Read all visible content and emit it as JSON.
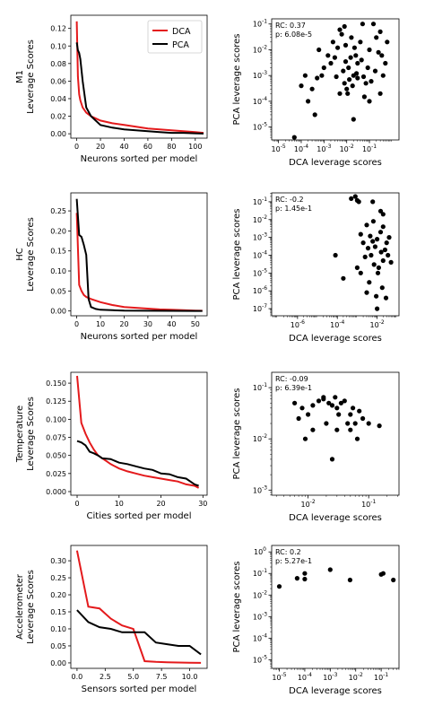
{
  "legend": [
    {
      "name": "DCA",
      "color": "#e41a1c"
    },
    {
      "name": "PCA",
      "color": "#000000"
    }
  ],
  "chart_data": [
    {
      "type": "line",
      "dataset": "M1",
      "ylabel": "Leverage Scores",
      "xlabel": "Neurons sorted per model",
      "xlim": [
        -5,
        110
      ],
      "ylim": [
        -0.005,
        0.135
      ],
      "xticks": [
        0,
        20,
        40,
        60,
        80,
        100
      ],
      "yticks": [
        0.0,
        0.02,
        0.04,
        0.06,
        0.08,
        0.1,
        0.12
      ],
      "ytick_labels": [
        "0.00",
        "0.02",
        "0.04",
        "0.06",
        "0.08",
        "0.10",
        "0.12"
      ],
      "legend_position": "top-right",
      "series": [
        {
          "name": "DCA",
          "color": "#e41a1c",
          "x": [
            0,
            1,
            2,
            3,
            5,
            8,
            12,
            20,
            30,
            40,
            50,
            60,
            70,
            80,
            90,
            100,
            107
          ],
          "y": [
            0.128,
            0.065,
            0.045,
            0.038,
            0.03,
            0.024,
            0.02,
            0.015,
            0.012,
            0.01,
            0.008,
            0.006,
            0.005,
            0.004,
            0.003,
            0.002,
            0.001
          ]
        },
        {
          "name": "PCA",
          "color": "#000000",
          "x": [
            0,
            1,
            2,
            3,
            5,
            8,
            12,
            20,
            30,
            40,
            50,
            60,
            70,
            80,
            90,
            100,
            107
          ],
          "y": [
            0.104,
            0.095,
            0.092,
            0.085,
            0.06,
            0.03,
            0.02,
            0.01,
            0.007,
            0.005,
            0.004,
            0.003,
            0.002,
            0.001,
            0.001,
            0.0005,
            0.0002
          ]
        }
      ]
    },
    {
      "type": "scatter",
      "dataset": "M1",
      "xlabel": "DCA leverage scores",
      "ylabel": "PCA leverage scores",
      "xscale": "log",
      "yscale": "log",
      "xlim_exp": [
        -5.3,
        0.3
      ],
      "ylim_exp": [
        -5.5,
        -0.8
      ],
      "xticks_exp": [
        -5,
        -4,
        -3,
        -2,
        -1
      ],
      "yticks_exp": [
        -5,
        -4,
        -3,
        -2,
        -1
      ],
      "annotation": [
        "RC: 0.37",
        "p: 6.08e-5"
      ],
      "points": [
        [
          0.01,
          0.0003
        ],
        [
          0.02,
          0.001
        ],
        [
          0.008,
          0.0005
        ],
        [
          0.005,
          0.0002
        ],
        [
          0.03,
          0.0008
        ],
        [
          0.015,
          0.005
        ],
        [
          0.012,
          0.002
        ],
        [
          0.04,
          0.02
        ],
        [
          0.1,
          0.01
        ],
        [
          0.2,
          0.03
        ],
        [
          0.3,
          0.05
        ],
        [
          0.15,
          0.1
        ],
        [
          0.05,
          0.1
        ],
        [
          0.008,
          0.08
        ],
        [
          0.005,
          0.06
        ],
        [
          0.003,
          0.005
        ],
        [
          0.002,
          0.003
        ],
        [
          0.001,
          0.002
        ],
        [
          0.0008,
          0.001
        ],
        [
          0.0005,
          0.0008
        ],
        [
          0.0003,
          0.0003
        ],
        [
          0.0002,
          0.0001
        ],
        [
          0.0001,
          0.0004
        ],
        [
          0.0004,
          3e-05
        ],
        [
          0.02,
          2e-05
        ],
        [
          0.1,
          0.0001
        ],
        [
          0.06,
          0.00015
        ],
        [
          0.3,
          0.0002
        ],
        [
          0.5,
          0.003
        ],
        [
          0.4,
          0.001
        ],
        [
          0.25,
          0.008
        ],
        [
          0.07,
          0.0005
        ],
        [
          0.009,
          0.015
        ],
        [
          0.006,
          0.04
        ],
        [
          0.004,
          0.012
        ],
        [
          0.0025,
          0.02
        ],
        [
          0.0015,
          0.006
        ],
        [
          0.03,
          0.003
        ],
        [
          0.025,
          0.006
        ],
        [
          0.018,
          0.0004
        ],
        [
          0.011,
          0.0002
        ],
        [
          0.007,
          0.0015
        ],
        [
          0.045,
          0.004
        ],
        [
          0.085,
          0.002
        ],
        [
          0.12,
          0.0006
        ],
        [
          0.18,
          0.0015
        ],
        [
          0.6,
          0.02
        ],
        [
          0.35,
          0.006
        ],
        [
          0.0006,
          0.01
        ],
        [
          0.00015,
          0.001
        ],
        [
          5e-05,
          4e-06
        ],
        [
          0.016,
          0.03
        ],
        [
          0.022,
          0.012
        ],
        [
          0.009,
          0.0035
        ],
        [
          0.0035,
          0.0009
        ],
        [
          0.013,
          0.0007
        ],
        [
          0.027,
          0.0012
        ],
        [
          0.055,
          0.0009
        ]
      ]
    },
    {
      "type": "line",
      "dataset": "HC",
      "ylabel": "Leverage Scores",
      "xlabel": "Neurons sorted per model",
      "xlim": [
        -2.5,
        55
      ],
      "ylim": [
        -0.012,
        0.295
      ],
      "xticks": [
        0,
        10,
        20,
        30,
        40,
        50
      ],
      "yticks": [
        0.0,
        0.05,
        0.1,
        0.15,
        0.2,
        0.25
      ],
      "ytick_labels": [
        "0.00",
        "0.05",
        "0.10",
        "0.15",
        "0.20",
        "0.25"
      ],
      "series": [
        {
          "name": "DCA",
          "color": "#e41a1c",
          "x": [
            0,
            1,
            2,
            3,
            4,
            6,
            10,
            15,
            20,
            25,
            30,
            35,
            40,
            45,
            50,
            53
          ],
          "y": [
            0.245,
            0.065,
            0.05,
            0.04,
            0.035,
            0.03,
            0.022,
            0.015,
            0.01,
            0.008,
            0.006,
            0.004,
            0.003,
            0.002,
            0.001,
            0.0005
          ]
        },
        {
          "name": "PCA",
          "color": "#000000",
          "x": [
            0,
            1,
            2,
            3,
            4,
            5,
            6,
            8,
            10,
            15,
            20,
            30,
            40,
            50,
            53
          ],
          "y": [
            0.28,
            0.19,
            0.185,
            0.165,
            0.14,
            0.03,
            0.01,
            0.005,
            0.003,
            0.002,
            0.001,
            0.0005,
            0.0003,
            0.0002,
            0.0001
          ]
        }
      ]
    },
    {
      "type": "scatter",
      "dataset": "HC",
      "xlabel": "DCA leverage scores",
      "ylabel": "PCA leverage scores",
      "xscale": "log",
      "yscale": "log",
      "xlim_exp": [
        -7.3,
        -0.9
      ],
      "ylim_exp": [
        -7.4,
        -0.5
      ],
      "xticks_exp": [
        -6,
        -4,
        -2
      ],
      "yticks_exp": [
        -7,
        -6,
        -5,
        -4,
        -3,
        -2,
        -1
      ],
      "annotation": [
        "RC: -0.2",
        "p: 1.45e-1"
      ],
      "points": [
        [
          0.0005,
          0.15
        ],
        [
          0.0008,
          0.2
        ],
        [
          0.001,
          0.12
        ],
        [
          0.0012,
          0.1
        ],
        [
          0.006,
          0.1
        ],
        [
          0.015,
          0.03
        ],
        [
          0.003,
          0.005
        ],
        [
          0.01,
          0.0008
        ],
        [
          0.02,
          0.004
        ],
        [
          0.008,
          0.0003
        ],
        [
          0.005,
          0.0001
        ],
        [
          0.02,
          5e-05
        ],
        [
          0.012,
          2e-05
        ],
        [
          0.0015,
          1e-05
        ],
        [
          0.0002,
          5e-06
        ],
        [
          8e-05,
          0.0001
        ],
        [
          0.03,
          0.0005
        ],
        [
          0.04,
          0.001
        ],
        [
          0.025,
          0.0002
        ],
        [
          0.007,
          3e-05
        ],
        [
          0.004,
          3e-06
        ],
        [
          0.009,
          5e-07
        ],
        [
          0.018,
          1.5e-06
        ],
        [
          0.01,
          1e-07
        ],
        [
          0.003,
          8e-07
        ],
        [
          0.002,
          0.0005
        ],
        [
          0.015,
          0.002
        ],
        [
          0.035,
          0.0001
        ],
        [
          0.0015,
          0.0015
        ],
        [
          0.0025,
          8e-05
        ],
        [
          0.006,
          0.0006
        ],
        [
          0.05,
          4e-05
        ],
        [
          0.011,
          1e-05
        ],
        [
          0.0035,
          0.00025
        ],
        [
          0.0045,
          0.0012
        ],
        [
          0.016,
          0.00015
        ],
        [
          0.028,
          4e-07
        ],
        [
          0.001,
          2e-05
        ],
        [
          0.02,
          0.02
        ],
        [
          0.0065,
          0.008
        ]
      ]
    },
    {
      "type": "line",
      "dataset": "Temperature",
      "ylabel": "Leverage Scores",
      "xlabel": "Cities sorted per model",
      "xlim": [
        -1.5,
        31
      ],
      "ylim": [
        -0.005,
        0.165
      ],
      "xticks": [
        0,
        10,
        20,
        30
      ],
      "yticks": [
        0.0,
        0.025,
        0.05,
        0.075,
        0.1,
        0.125,
        0.15
      ],
      "ytick_labels": [
        "0.000",
        "0.025",
        "0.050",
        "0.075",
        "0.100",
        "0.125",
        "0.150"
      ],
      "series": [
        {
          "name": "DCA",
          "color": "#e41a1c",
          "x": [
            0,
            1,
            2,
            3,
            4,
            5,
            6,
            7,
            8,
            9,
            10,
            12,
            14,
            16,
            18,
            20,
            22,
            24,
            26,
            28,
            29
          ],
          "y": [
            0.16,
            0.095,
            0.08,
            0.068,
            0.058,
            0.05,
            0.046,
            0.042,
            0.038,
            0.035,
            0.032,
            0.028,
            0.025,
            0.022,
            0.02,
            0.018,
            0.016,
            0.014,
            0.01,
            0.008,
            0.005
          ]
        },
        {
          "name": "PCA",
          "color": "#000000",
          "x": [
            0,
            1,
            2,
            3,
            4,
            5,
            6,
            8,
            10,
            12,
            14,
            16,
            18,
            20,
            22,
            24,
            26,
            28,
            29
          ],
          "y": [
            0.07,
            0.068,
            0.064,
            0.055,
            0.053,
            0.05,
            0.046,
            0.045,
            0.04,
            0.038,
            0.035,
            0.032,
            0.03,
            0.025,
            0.024,
            0.02,
            0.018,
            0.01,
            0.008
          ]
        }
      ]
    },
    {
      "type": "scatter",
      "dataset": "Temperature",
      "xlabel": "DCA leverage scores",
      "ylabel": "PCA leverage scores",
      "xscale": "log",
      "yscale": "log",
      "xlim_exp": [
        -2.6,
        -0.5
      ],
      "ylim_exp": [
        -3.1,
        -0.7
      ],
      "xticks_exp": [
        -2,
        -1
      ],
      "yticks_exp": [
        -3,
        -2,
        -1
      ],
      "annotation": [
        "RC: -0.09",
        "p: 6.39e-1"
      ],
      "points": [
        [
          0.006,
          0.05
        ],
        [
          0.008,
          0.04
        ],
        [
          0.01,
          0.03
        ],
        [
          0.012,
          0.045
        ],
        [
          0.015,
          0.055
        ],
        [
          0.018,
          0.06
        ],
        [
          0.022,
          0.05
        ],
        [
          0.025,
          0.045
        ],
        [
          0.03,
          0.04
        ],
        [
          0.035,
          0.05
        ],
        [
          0.04,
          0.055
        ],
        [
          0.05,
          0.03
        ],
        [
          0.06,
          0.02
        ],
        [
          0.07,
          0.035
        ],
        [
          0.08,
          0.025
        ],
        [
          0.1,
          0.02
        ],
        [
          0.15,
          0.018
        ],
        [
          0.009,
          0.01
        ],
        [
          0.02,
          0.02
        ],
        [
          0.03,
          0.015
        ],
        [
          0.025,
          0.004
        ],
        [
          0.045,
          0.02
        ],
        [
          0.055,
          0.04
        ],
        [
          0.007,
          0.025
        ],
        [
          0.012,
          0.015
        ],
        [
          0.018,
          0.065
        ],
        [
          0.032,
          0.03
        ],
        [
          0.065,
          0.01
        ],
        [
          0.05,
          0.015
        ],
        [
          0.028,
          0.065
        ]
      ]
    },
    {
      "type": "line",
      "dataset": "Accelerometer",
      "ylabel": "Leverage Scores",
      "xlabel": "Sensors sorted per model",
      "xlim": [
        -0.55,
        11.55
      ],
      "ylim": [
        -0.016,
        0.345
      ],
      "xticks": [
        0.0,
        2.5,
        5.0,
        7.5,
        10.0
      ],
      "xtick_labels": [
        "0.0",
        "2.5",
        "5.0",
        "7.5",
        "10.0"
      ],
      "yticks": [
        0.0,
        0.05,
        0.1,
        0.15,
        0.2,
        0.25,
        0.3
      ],
      "ytick_labels": [
        "0.00",
        "0.05",
        "0.10",
        "0.15",
        "0.20",
        "0.25",
        "0.30"
      ],
      "series": [
        {
          "name": "DCA",
          "color": "#e41a1c",
          "x": [
            0,
            1,
            2,
            3,
            4,
            5,
            6,
            7,
            8,
            9,
            10,
            11
          ],
          "y": [
            0.33,
            0.165,
            0.16,
            0.13,
            0.11,
            0.1,
            0.005,
            0.003,
            0.002,
            0.001,
            0.0005,
            0.0001
          ]
        },
        {
          "name": "PCA",
          "color": "#000000",
          "x": [
            0,
            1,
            2,
            3,
            4,
            5,
            6,
            7,
            8,
            9,
            10,
            11
          ],
          "y": [
            0.155,
            0.12,
            0.105,
            0.1,
            0.09,
            0.09,
            0.09,
            0.06,
            0.055,
            0.05,
            0.05,
            0.025
          ]
        }
      ]
    },
    {
      "type": "scatter",
      "dataset": "Accelerometer",
      "xlabel": "DCA leverage scores",
      "ylabel": "PCA leverage scores",
      "xscale": "log",
      "yscale": "log",
      "xlim_exp": [
        -5.3,
        -0.3
      ],
      "ylim_exp": [
        -5.4,
        0.3
      ],
      "xticks_exp": [
        -5,
        -4,
        -3,
        -2,
        -1
      ],
      "yticks_exp": [
        -5,
        -4,
        -3,
        -2,
        -1,
        0
      ],
      "annotation": [
        "RC: 0.2",
        "p: 5.27e-1"
      ],
      "points": [
        [
          1e-05,
          0.025
        ],
        [
          5e-05,
          0.06
        ],
        [
          0.0001,
          0.055
        ],
        [
          0.0001,
          0.1
        ],
        [
          0.001,
          0.15
        ],
        [
          0.006,
          0.05
        ],
        [
          0.1,
          0.09
        ],
        [
          0.12,
          0.1
        ],
        [
          0.3,
          0.05
        ]
      ]
    }
  ]
}
